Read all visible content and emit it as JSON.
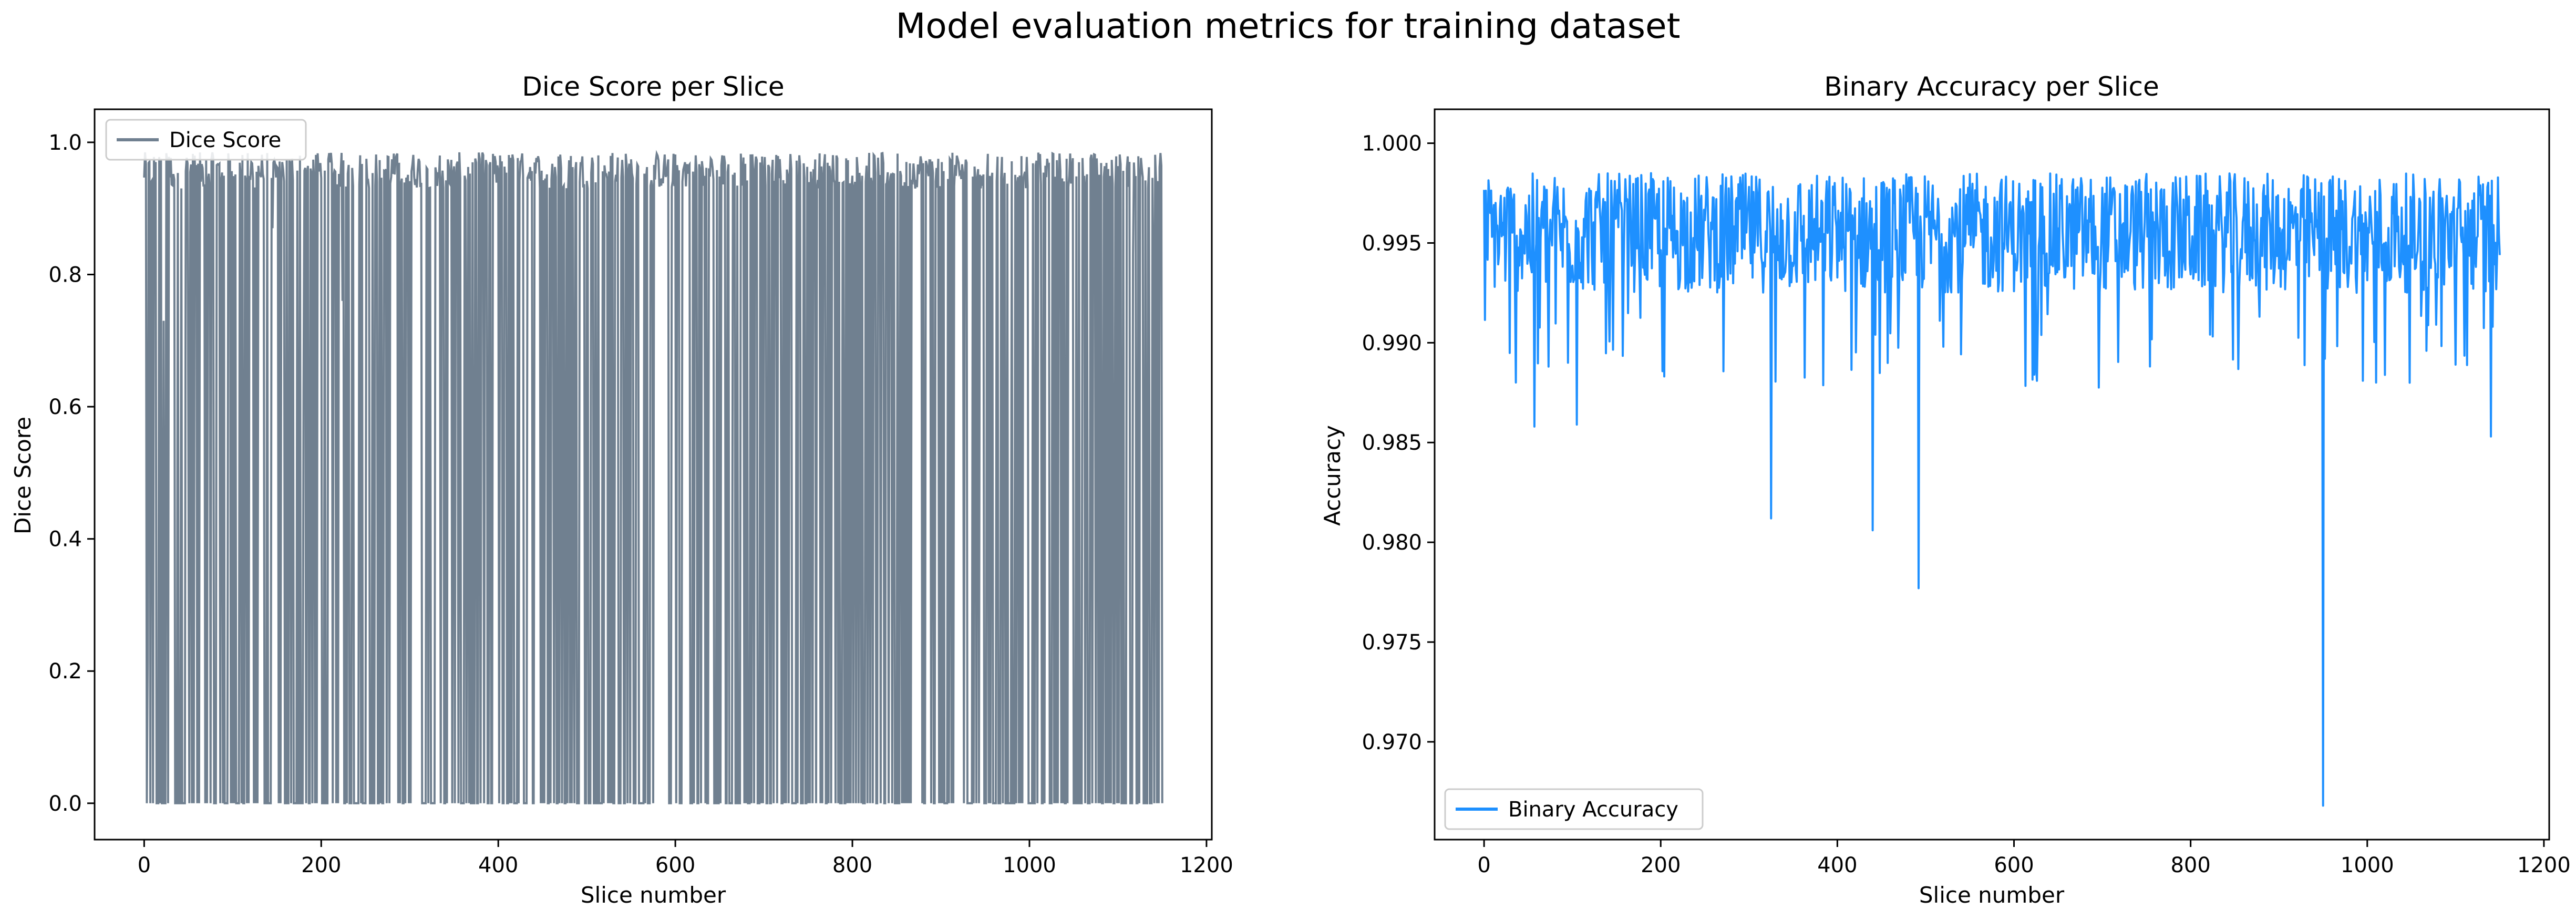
{
  "figure": {
    "suptitle": "Model evaluation metrics for training dataset"
  },
  "colors": {
    "dice": "#708090",
    "accuracy": "#1e90ff",
    "axes": "#000000"
  },
  "chart_data": [
    {
      "type": "line",
      "title": "Dice Score per Slice",
      "xlabel": "Slice number",
      "ylabel": "Dice Score",
      "xlim": [
        -56,
        1206
      ],
      "ylim": [
        -0.055,
        1.05
      ],
      "xticks": [
        0,
        200,
        400,
        600,
        800,
        1000,
        1200
      ],
      "xtick_labels": [
        "0",
        "200",
        "400",
        "600",
        "800",
        "1000",
        "1200"
      ],
      "yticks": [
        0.0,
        0.2,
        0.4,
        0.6,
        0.8,
        1.0
      ],
      "ytick_labels": [
        "0.0",
        "0.2",
        "0.4",
        "0.6",
        "0.8",
        "1.0"
      ],
      "legend": {
        "position": "upper-left",
        "entries": [
          "Dice Score"
        ]
      },
      "grid": false,
      "series": [
        {
          "name": "Dice Score",
          "n_points": 1151,
          "x_range": [
            0,
            1150
          ],
          "typical_high": 0.97,
          "low_value": 0.0,
          "notable_values": [
            {
              "x": 4,
              "y": 0.215
            },
            {
              "x": 22,
              "y": 0.73
            },
            {
              "x": 50,
              "y": 0.5
            },
            {
              "x": 145,
              "y": 0.87
            },
            {
              "x": 180,
              "y": 0.62
            },
            {
              "x": 224,
              "y": 0.76
            },
            {
              "x": 365,
              "y": 0.55
            },
            {
              "x": 485,
              "y": 0.45
            },
            {
              "x": 1117,
              "y": 0.83
            },
            {
              "x": 1140,
              "y": 0.81
            }
          ]
        }
      ]
    },
    {
      "type": "line",
      "title": "Binary Accuracy per Slice",
      "xlabel": "Slice number",
      "ylabel": "Accuracy",
      "xlim": [
        -56,
        1206
      ],
      "ylim": [
        0.9651,
        1.0017
      ],
      "xticks": [
        0,
        200,
        400,
        600,
        800,
        1000,
        1200
      ],
      "xtick_labels": [
        "0",
        "200",
        "400",
        "600",
        "800",
        "1000",
        "1200"
      ],
      "yticks": [
        0.97,
        0.975,
        0.98,
        0.985,
        0.99,
        0.995,
        1.0
      ],
      "ytick_labels": [
        "0.970",
        "0.975",
        "0.980",
        "0.985",
        "0.990",
        "0.995",
        "1.000"
      ],
      "legend": {
        "position": "lower-left",
        "entries": [
          "Binary Accuracy"
        ]
      },
      "grid": false,
      "series": [
        {
          "name": "Binary Accuracy",
          "n_points": 1151,
          "x_range": [
            0,
            1150
          ],
          "typical_mean": 0.9955,
          "typical_spread": 0.003,
          "max_value": 1.0,
          "notable_values": [
            {
              "x": 57,
              "y": 0.9858
            },
            {
              "x": 105,
              "y": 0.9859
            },
            {
              "x": 325,
              "y": 0.9812
            },
            {
              "x": 440,
              "y": 0.9806
            },
            {
              "x": 492,
              "y": 0.9777
            },
            {
              "x": 950,
              "y": 0.9668
            },
            {
              "x": 1140,
              "y": 0.9853
            }
          ]
        }
      ]
    }
  ]
}
